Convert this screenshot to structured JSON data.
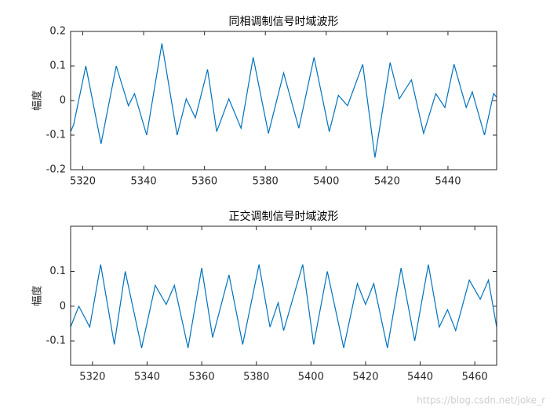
{
  "chart_data": [
    {
      "type": "line",
      "title": "同相调制信号时域波形",
      "y_label": "幅度",
      "x": [
        5316,
        5317,
        5321,
        5326,
        5331,
        5335,
        5337,
        5341,
        5346,
        5351,
        5354,
        5357,
        5361,
        5364,
        5368,
        5372,
        5376,
        5381,
        5386,
        5391,
        5396,
        5401,
        5404,
        5407,
        5412,
        5416,
        5421,
        5424,
        5428,
        5432,
        5436,
        5439,
        5442,
        5446,
        5448,
        5452,
        5455,
        5456
      ],
      "series": [
        {
          "name": "同相",
          "color": "#0072bd",
          "values": [
            -0.09,
            -0.07,
            0.1,
            -0.125,
            0.1,
            -0.015,
            0.02,
            -0.1,
            0.165,
            -0.1,
            0.005,
            -0.05,
            0.09,
            -0.09,
            0.005,
            -0.08,
            0.125,
            -0.095,
            0.08,
            -0.08,
            0.125,
            -0.09,
            0.015,
            -0.015,
            0.105,
            -0.165,
            0.11,
            0.005,
            0.06,
            -0.095,
            0.02,
            -0.02,
            0.105,
            -0.02,
            0.025,
            -0.1,
            0.02,
            0.01
          ]
        }
      ],
      "xlim": [
        5316,
        5456
      ],
      "xticks": [
        5320,
        5340,
        5360,
        5380,
        5400,
        5420,
        5440
      ],
      "ylim": [
        -0.2,
        0.2
      ],
      "yticks": [
        -0.2,
        -0.1,
        0,
        0.1,
        0.2
      ]
    },
    {
      "type": "line",
      "title": "正交调制信号时域波形",
      "y_label": "幅度",
      "x": [
        5312,
        5315,
        5319,
        5323,
        5328,
        5332,
        5338,
        5343,
        5347,
        5350,
        5355,
        5360,
        5364,
        5370,
        5375,
        5381,
        5385,
        5388,
        5390,
        5397,
        5401,
        5406,
        5412,
        5417,
        5420,
        5423,
        5428,
        5433,
        5438,
        5443,
        5447,
        5450,
        5453,
        5458,
        5462,
        5465,
        5468
      ],
      "series": [
        {
          "name": "正交",
          "color": "#0072bd",
          "values": [
            -0.06,
            0,
            -0.06,
            0.12,
            -0.11,
            0.1,
            -0.12,
            0.06,
            0.005,
            0.06,
            -0.12,
            0.11,
            -0.09,
            0.09,
            -0.11,
            0.12,
            -0.06,
            0.01,
            -0.07,
            0.12,
            -0.11,
            0.1,
            -0.12,
            0.065,
            0.005,
            0.065,
            -0.12,
            0.11,
            -0.1,
            0.12,
            -0.06,
            -0.01,
            -0.07,
            0.075,
            0.02,
            0.075,
            -0.06
          ]
        }
      ],
      "xlim": [
        5312,
        5468
      ],
      "xticks": [
        5320,
        5340,
        5360,
        5380,
        5400,
        5420,
        5440,
        5460
      ],
      "ylim": [
        -0.17,
        0.23
      ],
      "yticks": [
        -0.1,
        0,
        0.1
      ]
    }
  ],
  "watermark": "https://blog.csdn.net/joke_r"
}
